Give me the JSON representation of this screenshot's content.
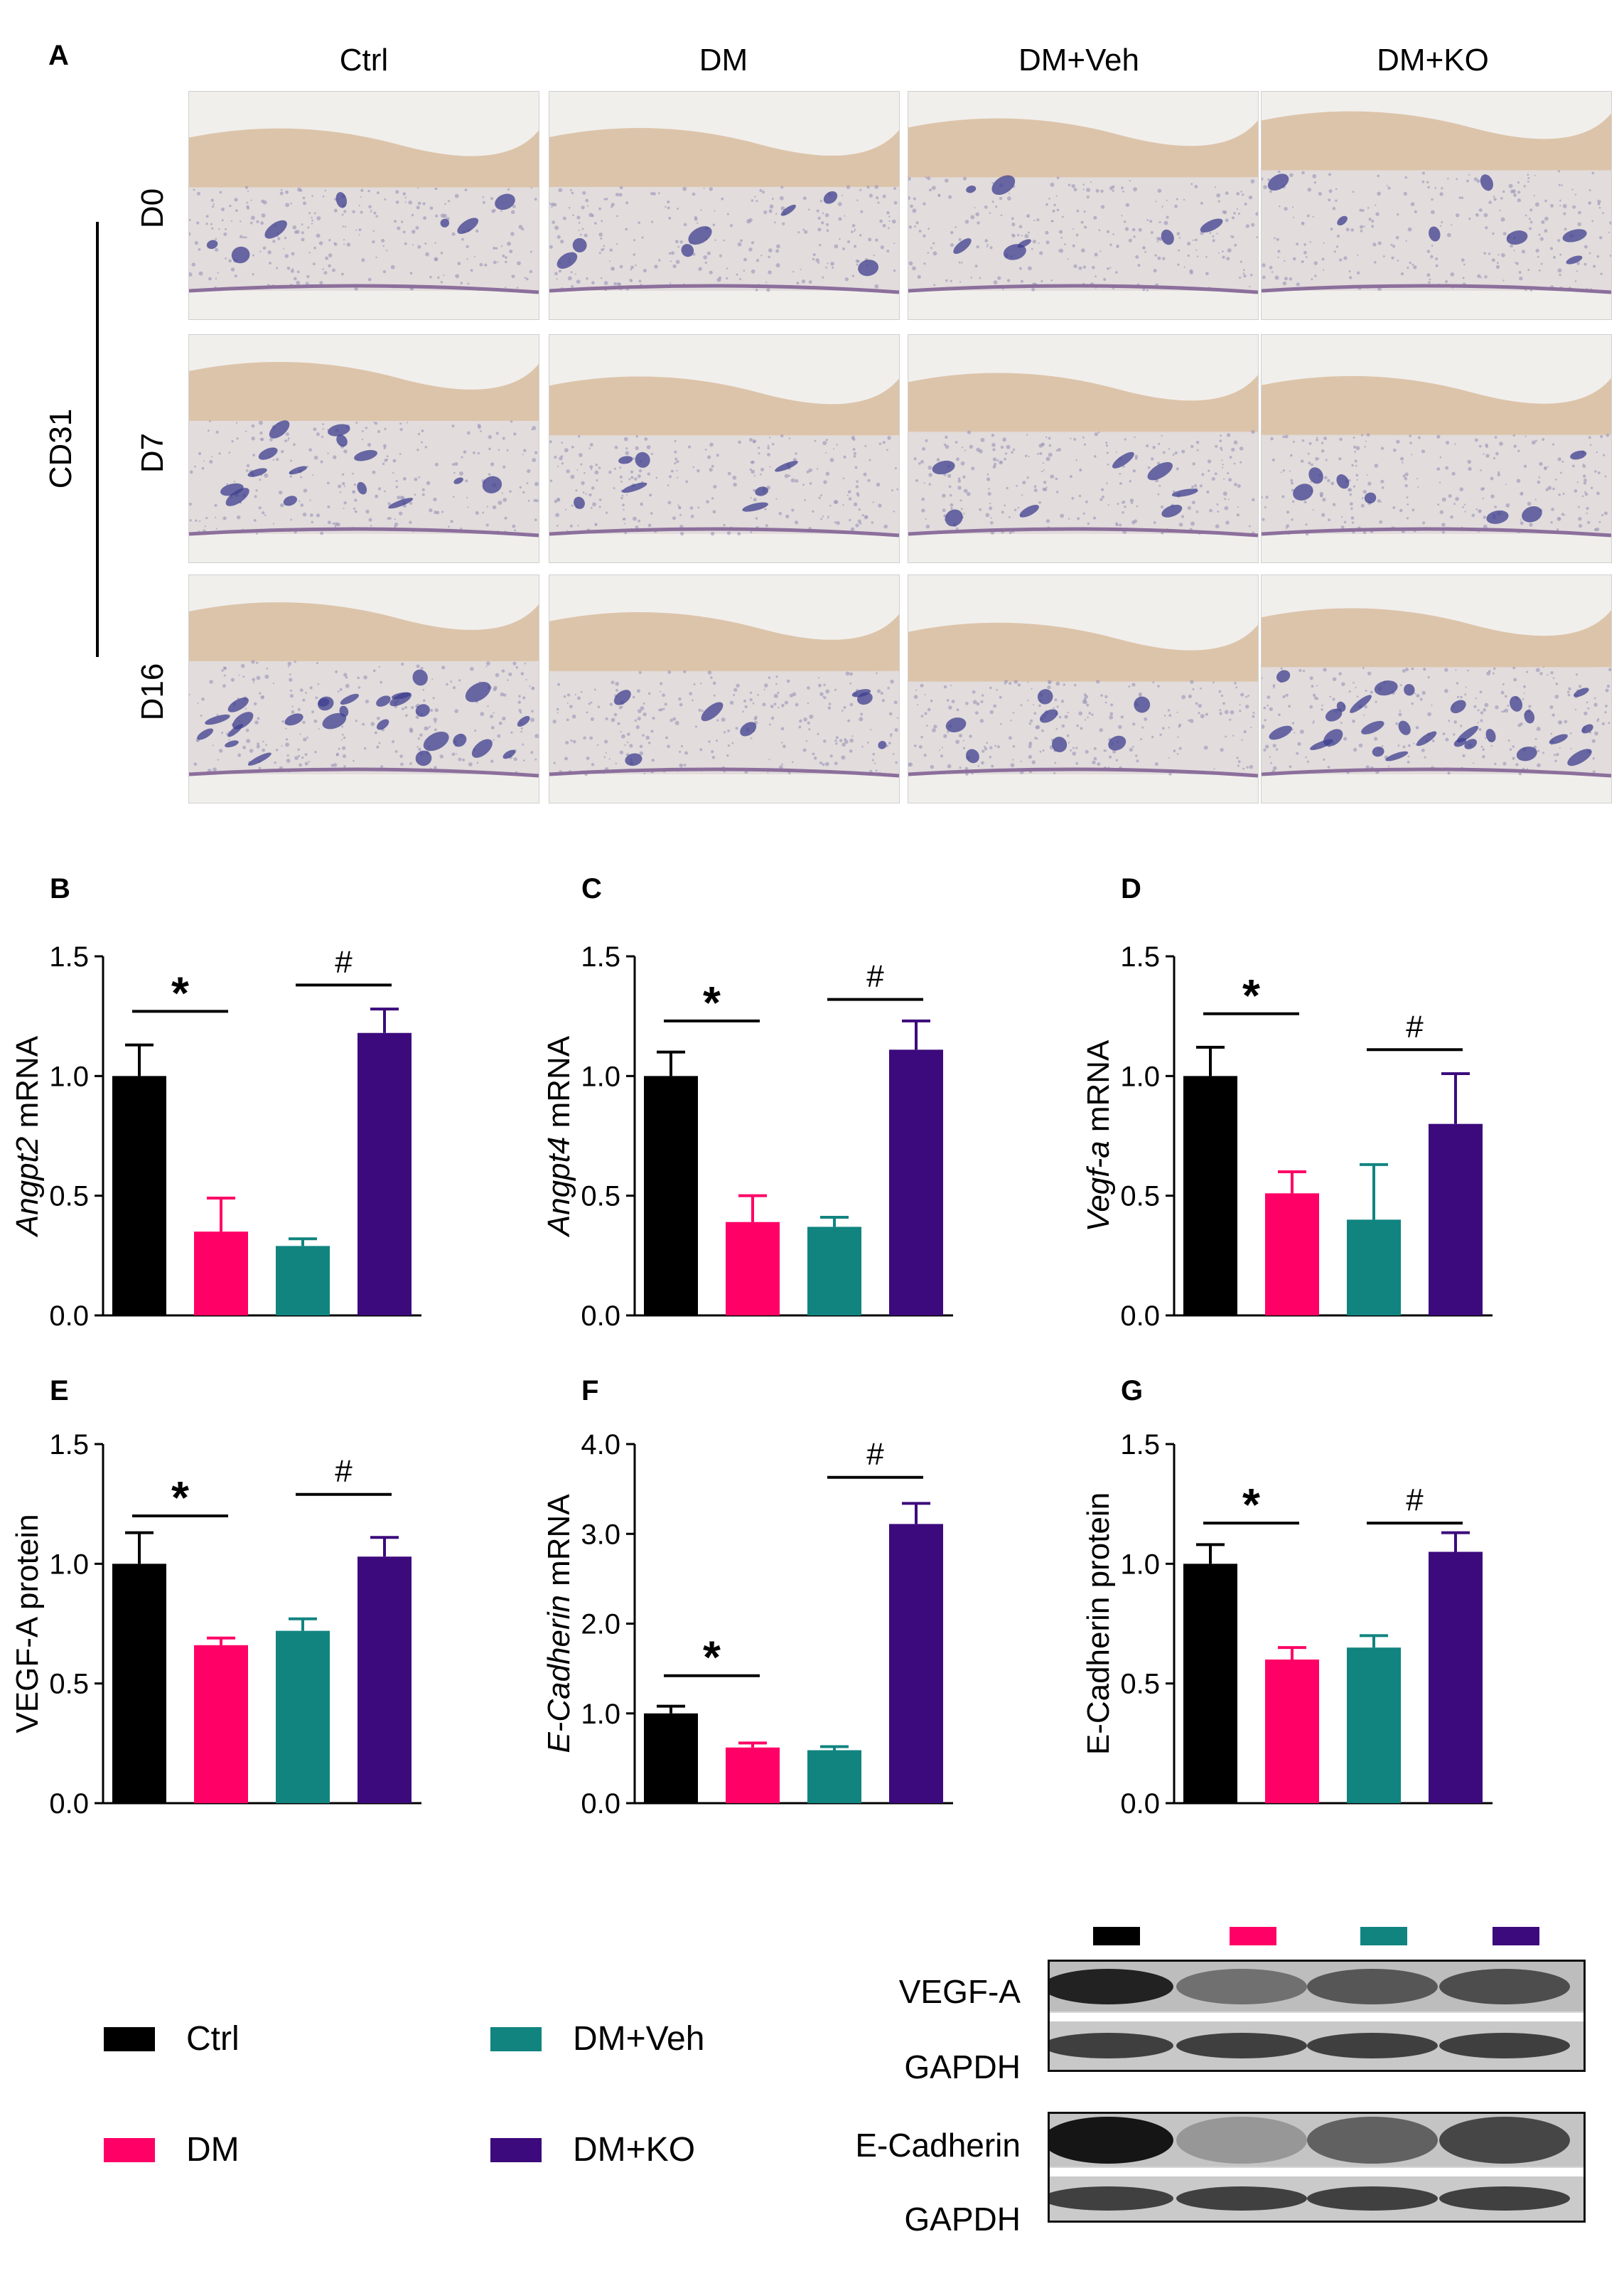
{
  "panel_labels": {
    "A": "A",
    "B": "B",
    "C": "C",
    "D": "D",
    "E": "E",
    "F": "F",
    "G": "G"
  },
  "micrograph": {
    "columns": [
      "Ctrl",
      "DM",
      "DM+Veh",
      "DM+KO"
    ],
    "rows": [
      "D0",
      "D7",
      "D16"
    ],
    "stain_label": "CD31"
  },
  "colors": {
    "Ctrl": "#000000",
    "DM": "#ff0066",
    "DM+Veh": "#118480",
    "DM+KO": "#3c0a7c"
  },
  "legend": [
    {
      "label": "Ctrl",
      "color": "#000000"
    },
    {
      "label": "DM+Veh",
      "color": "#118480"
    },
    {
      "label": "DM",
      "color": "#ff0066"
    },
    {
      "label": "DM+KO",
      "color": "#3c0a7c"
    }
  ],
  "western_blot": {
    "rows": [
      "VEGF-A",
      "GAPDH",
      "E-Cadherin",
      "GAPDH"
    ],
    "lane_colors": [
      "#000000",
      "#ff0066",
      "#118480",
      "#3c0a7c"
    ]
  },
  "chart_data": [
    {
      "panel": "B",
      "type": "bar",
      "categories": [
        "Ctrl",
        "DM",
        "DM+Veh",
        "DM+KO"
      ],
      "values": [
        1.0,
        0.35,
        0.29,
        1.18
      ],
      "errors": [
        0.13,
        0.14,
        0.03,
        0.1
      ],
      "ylabel_italic": "Angpt2",
      "ylabel_rest": " mRNA",
      "ylim": [
        0,
        1.5
      ],
      "yticks": [
        "0.0",
        "0.5",
        "1.0",
        "1.5"
      ],
      "sig": [
        {
          "from": 0,
          "to": 1,
          "mark": "*",
          "y": 1.27
        },
        {
          "from": 2,
          "to": 3,
          "mark": "#",
          "y": 1.38
        }
      ]
    },
    {
      "panel": "C",
      "type": "bar",
      "categories": [
        "Ctrl",
        "DM",
        "DM+Veh",
        "DM+KO"
      ],
      "values": [
        1.0,
        0.39,
        0.37,
        1.11
      ],
      "errors": [
        0.1,
        0.11,
        0.04,
        0.12
      ],
      "ylabel_italic": "Angpt4",
      "ylabel_rest": " mRNA",
      "ylim": [
        0,
        1.5
      ],
      "yticks": [
        "0.0",
        "0.5",
        "1.0",
        "1.5"
      ],
      "sig": [
        {
          "from": 0,
          "to": 1,
          "mark": "*",
          "y": 1.23
        },
        {
          "from": 2,
          "to": 3,
          "mark": "#",
          "y": 1.32
        }
      ]
    },
    {
      "panel": "D",
      "type": "bar",
      "categories": [
        "Ctrl",
        "DM",
        "DM+Veh",
        "DM+KO"
      ],
      "values": [
        1.0,
        0.51,
        0.4,
        0.8
      ],
      "errors": [
        0.12,
        0.09,
        0.23,
        0.21
      ],
      "ylabel_italic": "Vegf-a",
      "ylabel_rest": " mRNA",
      "ylim": [
        0,
        1.5
      ],
      "yticks": [
        "0.0",
        "0.5",
        "1.0",
        "1.5"
      ],
      "sig": [
        {
          "from": 0,
          "to": 1,
          "mark": "*",
          "y": 1.26
        },
        {
          "from": 2,
          "to": 3,
          "mark": "#",
          "y": 1.11
        }
      ]
    },
    {
      "panel": "E",
      "type": "bar",
      "categories": [
        "Ctrl",
        "DM",
        "DM+Veh",
        "DM+KO"
      ],
      "values": [
        1.0,
        0.66,
        0.72,
        1.03
      ],
      "errors": [
        0.13,
        0.03,
        0.05,
        0.08
      ],
      "ylabel_italic": "",
      "ylabel_rest": "VEGF-A protein",
      "ylim": [
        0,
        1.5
      ],
      "yticks": [
        "0.0",
        "0.5",
        "1.0",
        "1.5"
      ],
      "sig": [
        {
          "from": 0,
          "to": 1,
          "mark": "*",
          "y": 1.2
        },
        {
          "from": 2,
          "to": 3,
          "mark": "#",
          "y": 1.29
        }
      ]
    },
    {
      "panel": "F",
      "type": "bar",
      "categories": [
        "Ctrl",
        "DM",
        "DM+Veh",
        "DM+KO"
      ],
      "values": [
        1.0,
        0.62,
        0.59,
        3.11
      ],
      "errors": [
        0.08,
        0.05,
        0.04,
        0.23
      ],
      "ylabel_italic": "E-Cadherin",
      "ylabel_rest": " mRNA",
      "ylim": [
        0,
        4.0
      ],
      "yticks": [
        "0.0",
        "1.0",
        "2.0",
        "3.0",
        "4.0"
      ],
      "sig": [
        {
          "from": 0,
          "to": 1,
          "mark": "*",
          "y": 1.42
        },
        {
          "from": 2,
          "to": 3,
          "mark": "#",
          "y": 3.63
        }
      ]
    },
    {
      "panel": "G",
      "type": "bar",
      "categories": [
        "Ctrl",
        "DM",
        "DM+Veh",
        "DM+KO"
      ],
      "values": [
        1.0,
        0.6,
        0.65,
        1.05
      ],
      "errors": [
        0.08,
        0.05,
        0.05,
        0.08
      ],
      "ylabel_italic": "",
      "ylabel_rest": "E-Cadherin protein",
      "ylim": [
        0,
        1.5
      ],
      "yticks": [
        "0.0",
        "0.5",
        "1.0",
        "1.5"
      ],
      "sig": [
        {
          "from": 0,
          "to": 1,
          "mark": "*",
          "y": 1.17
        },
        {
          "from": 2,
          "to": 3,
          "mark": "#",
          "y": 1.17
        }
      ]
    }
  ]
}
